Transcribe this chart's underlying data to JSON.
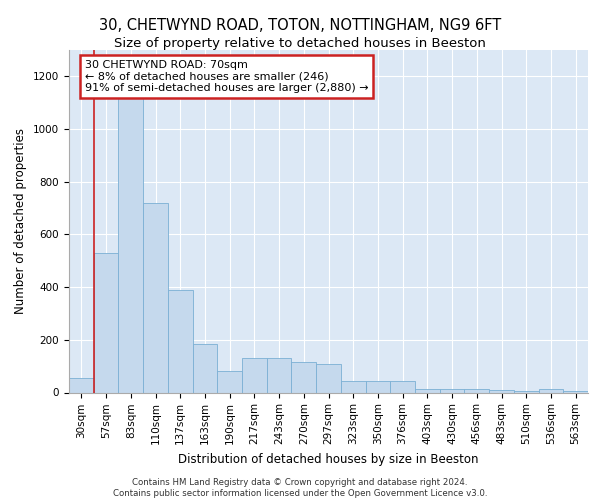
{
  "title1": "30, CHETWYND ROAD, TOTON, NOTTINGHAM, NG9 6FT",
  "title2": "Size of property relative to detached houses in Beeston",
  "xlabel": "Distribution of detached houses by size in Beeston",
  "ylabel": "Number of detached properties",
  "bar_color": "#c5d9ed",
  "bar_edge_color": "#7bafd4",
  "plot_bg_color": "#dce8f5",
  "annotation_text": "30 CHETWYND ROAD: 70sqm\n← 8% of detached houses are smaller (246)\n91% of semi-detached houses are larger (2,880) →",
  "annotation_box_color": "#ffffff",
  "annotation_border_color": "#cc2222",
  "footer_text": "Contains HM Land Registry data © Crown copyright and database right 2024.\nContains public sector information licensed under the Open Government Licence v3.0.",
  "categories": [
    "30sqm",
    "57sqm",
    "83sqm",
    "110sqm",
    "137sqm",
    "163sqm",
    "190sqm",
    "217sqm",
    "243sqm",
    "270sqm",
    "297sqm",
    "323sqm",
    "350sqm",
    "376sqm",
    "403sqm",
    "430sqm",
    "456sqm",
    "483sqm",
    "510sqm",
    "536sqm",
    "563sqm"
  ],
  "values": [
    55,
    530,
    1150,
    720,
    390,
    185,
    80,
    130,
    130,
    115,
    110,
    45,
    45,
    45,
    15,
    15,
    15,
    10,
    5,
    15,
    5
  ],
  "ylim": [
    0,
    1300
  ],
  "yticks": [
    0,
    200,
    400,
    600,
    800,
    1000,
    1200
  ],
  "red_line_x": 0.5,
  "title1_fontsize": 10.5,
  "title2_fontsize": 9.5,
  "tick_fontsize": 7.5,
  "ylabel_fontsize": 8.5,
  "xlabel_fontsize": 8.5,
  "annotation_fontsize": 8,
  "footer_fontsize": 6.2
}
